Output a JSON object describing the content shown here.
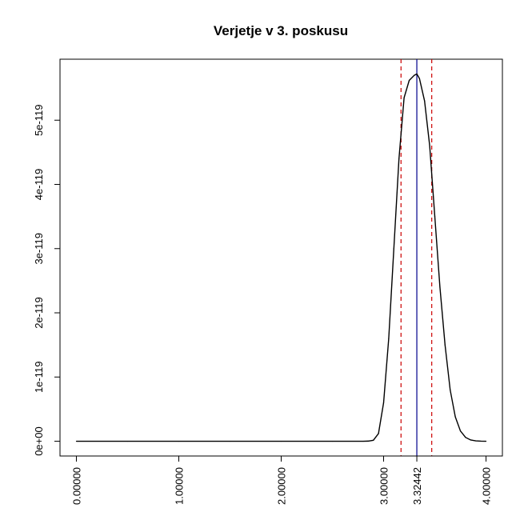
{
  "chart_data": {
    "type": "line",
    "title": "Verjetje v 3. poskusu",
    "xlabel": "",
    "ylabel": "",
    "xlim": [
      -0.16,
      4.16
    ],
    "ylim": [
      -2.3e-120,
      5.95e-119
    ],
    "x_ticks": [
      0,
      1,
      2,
      3,
      3.32442,
      4
    ],
    "x_tick_labels": [
      "0.00000",
      "1.00000",
      "2.00000",
      "3.00000",
      "3.32442",
      "4.00000"
    ],
    "y_ticks": [
      0,
      1e-119,
      2e-119,
      3e-119,
      4e-119,
      5e-119
    ],
    "y_tick_labels": [
      "0e+00",
      "1e-119",
      "2e-119",
      "3e-119",
      "4e-119",
      "5e-119"
    ],
    "grid": false,
    "series": [
      {
        "x": [
          0,
          0.5,
          1,
          1.5,
          2,
          2.5,
          2.8,
          2.85,
          2.9,
          2.95,
          3.0,
          3.05,
          3.1,
          3.15,
          3.2,
          3.25,
          3.3,
          3.32442,
          3.35,
          3.4,
          3.45,
          3.5,
          3.55,
          3.6,
          3.65,
          3.7,
          3.75,
          3.8,
          3.85,
          3.9,
          3.95,
          4.0
        ],
        "values": [
          0,
          0,
          0,
          0,
          0,
          0,
          0,
          2e-122,
          1.5e-121,
          1.2e-120,
          6e-120,
          1.6e-119,
          3e-119,
          4.4e-119,
          5.35e-119,
          5.62e-119,
          5.7e-119,
          5.72e-119,
          5.65e-119,
          5.3e-119,
          4.6e-119,
          3.5e-119,
          2.4e-119,
          1.5e-119,
          8e-120,
          3.8e-120,
          1.6e-120,
          6e-121,
          2e-121,
          6e-122,
          1.5e-122,
          0
        ],
        "color": "#000000"
      }
    ],
    "vlines": [
      {
        "x": 3.32442,
        "color": "#00008b",
        "style": "solid"
      },
      {
        "x": 3.17,
        "color": "#cc0000",
        "style": "dashed"
      },
      {
        "x": 3.47,
        "color": "#cc0000",
        "style": "dashed"
      }
    ]
  }
}
